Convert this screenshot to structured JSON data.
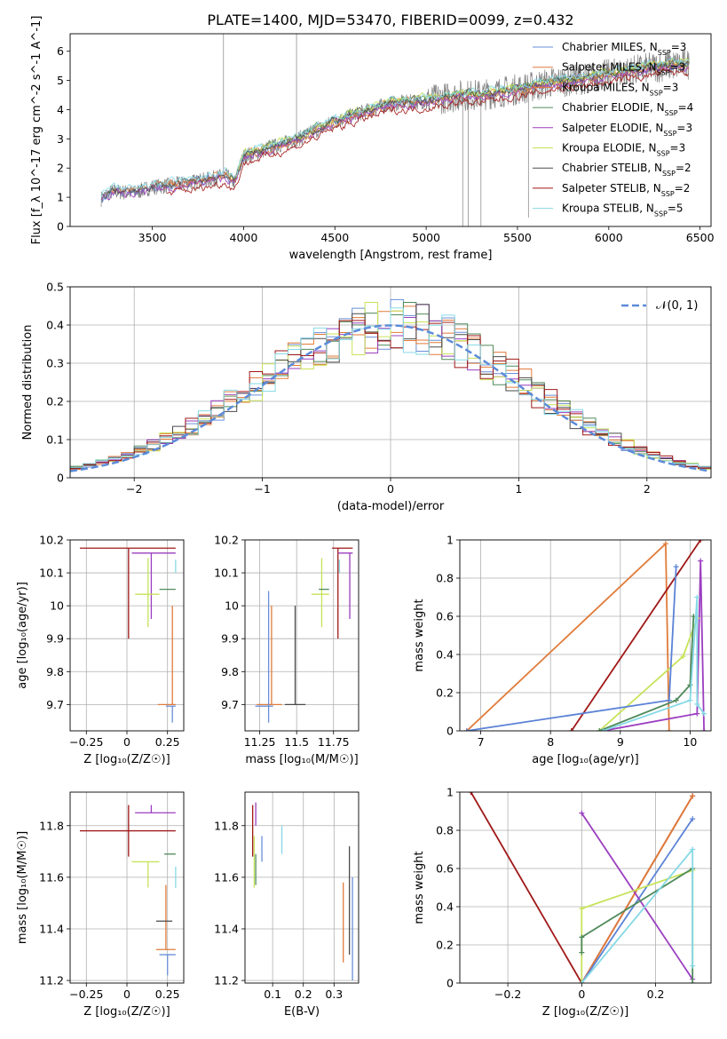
{
  "figure_title": "PLATE=1400, MJD=53470, FIBERID=0099, z=0.432",
  "legend": {
    "models": [
      {
        "label": "Chabrier MILES, N$_{SSP}$=3",
        "color": "#808080"
      },
      {
        "label": "Salpeter MILES, N$_{SSP}$=3",
        "color": "#808080"
      },
      {
        "label": "Kroupa MILES, N$_{SSP}$=3",
        "color": "#ff7f0e"
      },
      {
        "label": "Chabrier ELODIE, N$_{SSP}$=4",
        "color": "#2e8b57"
      },
      {
        "label": "Salpeter ELODIE, N$_{SSP}$=3",
        "color": "#9932cc"
      },
      {
        "label": "Kroupa ELODIE, N$_{SSP}$=3",
        "color": "#d4e157"
      },
      {
        "label": "Chabrier STELIB, N$_{SSP}$=2",
        "color": "#404040"
      },
      {
        "label": "Salpeter STELIB, N$_{SSP}$=2",
        "color": "#b22222"
      },
      {
        "label": "Kroupa STELIB, N$_{SSP}$=5",
        "color": "#87ceeb"
      }
    ],
    "gaussian": "𝒩(0, 1)"
  },
  "chart_data": [
    {
      "id": "spectrum",
      "type": "line",
      "xlabel": "wavelength [Angstrom, rest frame]",
      "ylabel": "Flux [f_λ 10^-17 erg cm^-2 s^-1 A^-1]",
      "xlim": [
        3050,
        6560
      ],
      "ylim": [
        0,
        6.6
      ],
      "xticks": [
        3500,
        4000,
        4500,
        5000,
        5500,
        6000,
        6500
      ],
      "yticks": [
        0,
        1,
        2,
        3,
        4,
        5,
        6
      ],
      "continuum": {
        "x": [
          3220,
          3280,
          3400,
          3500,
          3600,
          3700,
          3800,
          3900,
          3950,
          4000,
          4100,
          4200,
          4300,
          4400,
          4500,
          4600,
          4700,
          4800,
          4900,
          5000,
          5100,
          5200,
          5300,
          5400,
          5500,
          5600,
          5700,
          5800,
          5900,
          6000,
          6100,
          6200,
          6300,
          6420
        ],
        "y": [
          0.95,
          1.2,
          1.15,
          1.35,
          1.4,
          1.5,
          1.6,
          1.75,
          1.5,
          2.4,
          2.6,
          2.8,
          3.0,
          3.3,
          3.6,
          3.8,
          4.0,
          4.2,
          4.25,
          4.3,
          4.4,
          4.5,
          4.5,
          4.6,
          4.7,
          4.8,
          4.95,
          5.0,
          5.1,
          5.2,
          5.3,
          5.4,
          5.5,
          5.55
        ]
      }
    },
    {
      "id": "residuals",
      "type": "histogram",
      "xlabel": "(data-model)/error",
      "ylabel": "Normed distribution",
      "xlim": [
        -2.5,
        2.5
      ],
      "ylim": [
        0,
        0.5
      ],
      "xticks": [
        -2,
        -1,
        0,
        1,
        2
      ],
      "yticks": [
        0.0,
        0.1,
        0.2,
        0.3,
        0.4,
        0.5
      ],
      "bin_width": 0.1,
      "gaussian": {
        "mean": 0,
        "sigma": 1,
        "color": "#5b8bd9"
      }
    },
    {
      "id": "age-vs-Z",
      "type": "errorbar",
      "xlabel": "Z [log₁₀(Z/Z☉)]",
      "ylabel": "age  [log₁₀(age/yr)]",
      "xlim": [
        -0.35,
        0.35
      ],
      "ylim": [
        9.62,
        10.2
      ],
      "xticks": [
        -0.25,
        0.0,
        0.25
      ],
      "yticks": [
        9.7,
        9.8,
        9.9,
        10.0,
        10.1,
        10.2
      ],
      "points": [
        {
          "model": 7,
          "x": 0.01,
          "xerr": [
            0.3,
            0.29
          ],
          "y": 10.175,
          "yerr": [
            0.275,
            0.0
          ]
        },
        {
          "model": 4,
          "x": 0.15,
          "xerr": [
            0.12,
            0.15
          ],
          "y": 10.16,
          "yerr": [
            0.2,
            0.0
          ]
        },
        {
          "model": 5,
          "x": 0.13,
          "xerr": [
            0.08,
            0.07
          ],
          "y": 10.035,
          "yerr": [
            0.1,
            0.11
          ]
        },
        {
          "model": 3,
          "x": 0.26,
          "xerr": [
            0.06,
            0.04
          ],
          "y": 10.05,
          "yerr": [
            0.0,
            0.0
          ]
        },
        {
          "model": 2,
          "x": 0.28,
          "xerr": [
            0.09,
            0.02
          ],
          "y": 9.7,
          "yerr": [
            0.0,
            0.3
          ]
        },
        {
          "model": 8,
          "x": 0.3,
          "xerr": [
            0.0,
            0.0
          ],
          "y": 10.12,
          "yerr": [
            0.02,
            0.02
          ]
        },
        {
          "model": 0,
          "x": 0.28,
          "xerr": [
            0.04,
            0.02
          ],
          "y": 9.695,
          "yerr": [
            0.05,
            0.0
          ]
        }
      ]
    },
    {
      "id": "age-vs-mass",
      "type": "errorbar",
      "xlabel": "mass [log₁₀(M/M☉)]",
      "ylabel": "",
      "xlim": [
        11.15,
        11.92
      ],
      "ylim": [
        9.62,
        10.2
      ],
      "xticks": [
        11.25,
        11.5,
        11.75
      ],
      "yticks": [
        9.7,
        9.8,
        9.9,
        10.0,
        10.1,
        10.2
      ],
      "points": [
        {
          "model": 7,
          "x": 11.78,
          "xerr": [
            0.04,
            0.1
          ],
          "y": 10.175,
          "yerr": [
            0.275,
            0.0
          ]
        },
        {
          "model": 4,
          "x": 11.86,
          "xerr": [
            0.08,
            0.02
          ],
          "y": 10.16,
          "yerr": [
            0.2,
            0.0
          ]
        },
        {
          "model": 5,
          "x": 11.67,
          "xerr": [
            0.07,
            0.05
          ],
          "y": 10.035,
          "yerr": [
            0.1,
            0.11
          ]
        },
        {
          "model": 3,
          "x": 11.69,
          "xerr": [
            0.04,
            0.03
          ],
          "y": 10.05,
          "yerr": [
            0.0,
            0.0
          ]
        },
        {
          "model": 2,
          "x": 11.33,
          "xerr": [
            0.1,
            0.07
          ],
          "y": 9.7,
          "yerr": [
            0.0,
            0.3
          ]
        },
        {
          "model": 8,
          "x": 11.79,
          "xerr": [
            0.0,
            0.0
          ],
          "y": 10.12,
          "yerr": [
            0.02,
            0.02
          ]
        },
        {
          "model": 0,
          "x": 11.31,
          "xerr": [
            0.09,
            0.03
          ],
          "y": 9.695,
          "yerr": [
            0.05,
            0.35
          ]
        },
        {
          "model": 6,
          "x": 11.49,
          "xerr": [
            0.07,
            0.07
          ],
          "y": 9.7,
          "yerr": [
            0.0,
            0.3
          ]
        }
      ]
    },
    {
      "id": "massweight-vs-age",
      "type": "line",
      "xlabel": "age  [log₁₀(age/yr)]",
      "ylabel": "mass weight",
      "xlim": [
        6.7,
        10.3
      ],
      "ylim": [
        0,
        1.0
      ],
      "xticks": [
        7,
        8,
        9,
        10
      ],
      "yticks": [
        0.0,
        0.2,
        0.4,
        0.6,
        0.8,
        1.0
      ],
      "series": [
        {
          "model": 2,
          "x": [
            6.8,
            9.65,
            9.7
          ],
          "y": [
            0.0,
            0.98,
            0.0
          ]
        },
        {
          "model": 7,
          "x": [
            8.3,
            10.15
          ],
          "y": [
            0.0,
            1.0
          ]
        },
        {
          "model": 4,
          "x": [
            8.75,
            10.1,
            10.15,
            10.2
          ],
          "y": [
            0.0,
            0.09,
            0.89,
            0.0
          ]
        },
        {
          "model": 5,
          "x": [
            8.7,
            9.9,
            10.1
          ],
          "y": [
            0.0,
            0.39,
            0.59
          ]
        },
        {
          "model": 3,
          "x": [
            8.7,
            9.8,
            10.0,
            10.05
          ],
          "y": [
            0.0,
            0.16,
            0.24,
            0.6
          ]
        },
        {
          "model": 0,
          "x": [
            6.8,
            9.7,
            9.8
          ],
          "y": [
            0.0,
            0.16,
            0.86
          ]
        },
        {
          "model": 8,
          "x": [
            8.75,
            10.0,
            10.1,
            10.1,
            10.2
          ],
          "y": [
            0.0,
            0.16,
            0.7,
            0.14,
            0.09
          ]
        }
      ]
    },
    {
      "id": "mass-vs-Z",
      "type": "errorbar",
      "xlabel": "Z [log₁₀(Z/Z☉)]",
      "ylabel": "mass [log₁₀(M/M☉)]",
      "xlim": [
        -0.35,
        0.35
      ],
      "ylim": [
        11.19,
        11.93
      ],
      "xticks": [
        -0.25,
        0.0,
        0.25
      ],
      "yticks": [
        11.2,
        11.4,
        11.6,
        11.8
      ],
      "points": [
        {
          "model": 7,
          "x": 0.01,
          "xerr": [
            0.3,
            0.29
          ],
          "y": 11.78,
          "yerr": [
            0.1,
            0.1
          ]
        },
        {
          "model": 4,
          "x": 0.15,
          "xerr": [
            0.1,
            0.15
          ],
          "y": 11.85,
          "yerr": [
            0.0,
            0.03
          ]
        },
        {
          "model": 5,
          "x": 0.13,
          "xerr": [
            0.1,
            0.07
          ],
          "y": 11.66,
          "yerr": [
            0.1,
            0.0
          ]
        },
        {
          "model": 3,
          "x": 0.26,
          "xerr": [
            0.03,
            0.04
          ],
          "y": 11.69,
          "yerr": [
            0.0,
            0.0
          ]
        },
        {
          "model": 2,
          "x": 0.24,
          "xerr": [
            0.06,
            0.06
          ],
          "y": 11.32,
          "yerr": [
            0.0,
            0.25
          ]
        },
        {
          "model": 6,
          "x": 0.24,
          "xerr": [
            0.06,
            0.04
          ],
          "y": 11.43,
          "yerr": [
            0.0,
            0.0
          ]
        },
        {
          "model": 0,
          "x": 0.25,
          "xerr": [
            0.05,
            0.05
          ],
          "y": 11.3,
          "yerr": [
            0.08,
            0.0
          ]
        },
        {
          "model": 8,
          "x": 0.3,
          "xerr": [
            0.0,
            0.0
          ],
          "y": 11.6,
          "yerr": [
            0.0,
            0.0
          ]
        }
      ]
    },
    {
      "id": "mass-vs-EBV",
      "type": "errorbar",
      "xlabel": "E(B-V)",
      "ylabel": "",
      "xlim": [
        0.01,
        0.38
      ],
      "ylim": [
        11.19,
        11.93
      ],
      "xticks": [
        0.1,
        0.2,
        0.3
      ],
      "yticks": [
        11.2,
        11.4,
        11.6,
        11.8
      ],
      "points": [
        {
          "model": 7,
          "x": 0.035,
          "y": 11.78,
          "yerr": [
            0.1,
            0.1
          ]
        },
        {
          "model": 4,
          "x": 0.045,
          "y": 11.85,
          "yerr": [
            0.05,
            0.04
          ]
        },
        {
          "model": 5,
          "x": 0.04,
          "y": 11.66,
          "yerr": [
            0.1,
            0.1
          ]
        },
        {
          "model": 3,
          "x": 0.045,
          "y": 11.69,
          "yerr": [
            0.12,
            0.0
          ]
        },
        {
          "model": 0,
          "x": 0.065,
          "y": 11.72,
          "yerr": [
            0.06,
            0.04
          ]
        },
        {
          "model": 8,
          "x": 0.13,
          "y": 11.75,
          "yerr": [
            0.06,
            0.05
          ]
        },
        {
          "model": 2,
          "x": 0.33,
          "y": 11.43,
          "yerr": [
            0.16,
            0.15
          ]
        },
        {
          "model": 6,
          "x": 0.35,
          "y": 11.5,
          "yerr": [
            0.2,
            0.22
          ]
        },
        {
          "model": 0,
          "x": 0.36,
          "y": 11.4,
          "yerr": [
            0.2,
            0.2
          ]
        }
      ]
    },
    {
      "id": "massweight-vs-Z",
      "type": "line",
      "xlabel": "Z [log₁₀(Z/Z☉)]",
      "ylabel": "mass weight",
      "xlim": [
        -0.33,
        0.35
      ],
      "ylim": [
        0,
        1.0
      ],
      "xticks": [
        -0.2,
        0.0,
        0.2
      ],
      "yticks": [
        0.0,
        0.2,
        0.4,
        0.6,
        0.8,
        1.0
      ],
      "series": [
        {
          "model": 7,
          "x": [
            -0.3,
            0.0,
            0.3
          ],
          "y": [
            1.0,
            0.0,
            0.98
          ]
        },
        {
          "model": 2,
          "x": [
            0.0,
            0.3
          ],
          "y": [
            0.0,
            0.98
          ]
        },
        {
          "model": 0,
          "x": [
            0.0,
            0.3
          ],
          "y": [
            0.0,
            0.86
          ]
        },
        {
          "model": 4,
          "x": [
            0.0,
            0.3
          ],
          "y": [
            0.89,
            0.02
          ]
        },
        {
          "model": 5,
          "x": [
            0.0,
            0.0,
            0.3
          ],
          "y": [
            0.0,
            0.39,
            0.59
          ]
        },
        {
          "model": 3,
          "x": [
            0.0,
            0.0,
            0.3,
            0.3
          ],
          "y": [
            0.16,
            0.24,
            0.6,
            0.0
          ]
        },
        {
          "model": 8,
          "x": [
            0.0,
            0.3,
            0.3
          ],
          "y": [
            0.0,
            0.7,
            0.09
          ]
        }
      ]
    }
  ]
}
